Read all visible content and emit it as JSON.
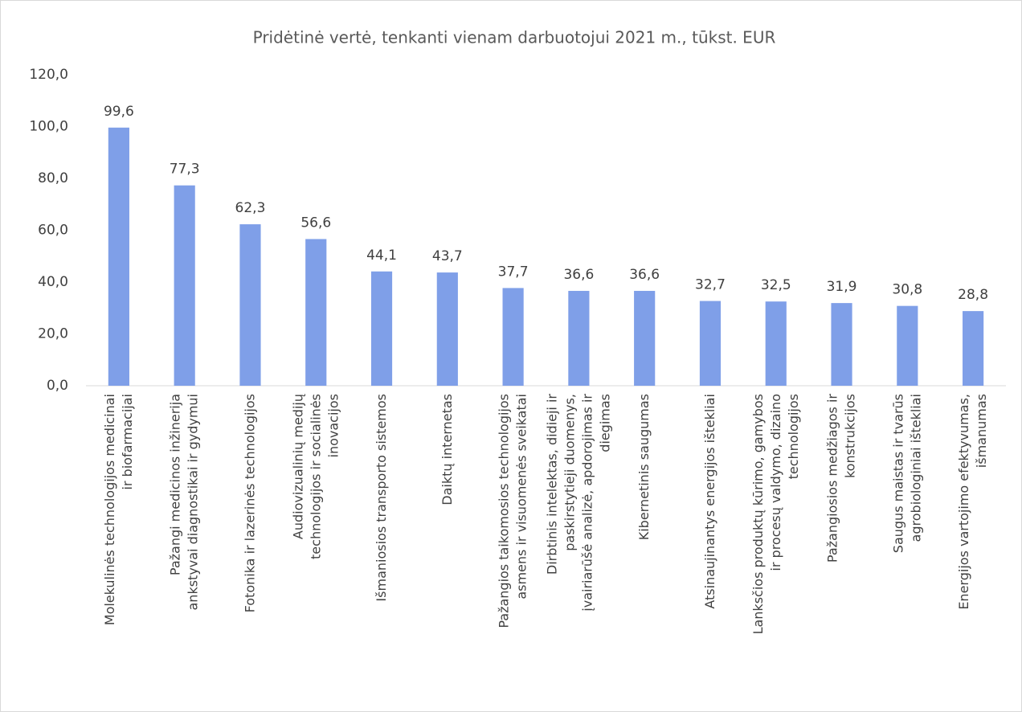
{
  "chart_data": {
    "type": "bar",
    "title": "Pridėtinė vertė, tenkanti vienam darbuotojui 2021 m., tūkst. EUR",
    "categories": [
      "Molekulinės technologijos medicinai ir biofarmacijai",
      "Pažangi medicinos inžinerija ankstyvai diagnostikai ir gydymui",
      "Fotonika ir lazerinės technologijos",
      "Audiovizualinių medijų technologijos ir socialinės inovacijos",
      "Išmaniosios transporto sistemos",
      "Daiktų internetas",
      "Pažangios taikomosios technologijos asmens ir visuomenės sveikatai",
      "Dirbtinis intelektas, didieji ir paskirstytieji duomenys, įvairiarūšė analizė, apdorojimas ir diegimas",
      "Kibernetinis saugumas",
      "Atsinaujinantys energijos ištekliai",
      "Lanksčios produktų kūrimo, gamybos ir procesų valdymo, dizaino technologijos",
      "Pažangiosios medžiagos ir konstrukcijos",
      "Saugus maistas ir tvarūs agrobiologiniai ištekliai",
      "Energijos vartojimo efektyvumas, išmanumas"
    ],
    "values": [
      99.6,
      77.3,
      62.3,
      56.6,
      44.1,
      43.7,
      37.7,
      36.6,
      36.6,
      32.7,
      32.5,
      31.9,
      30.8,
      28.8
    ],
    "value_labels": [
      "99,6",
      "77,3",
      "62,3",
      "56,6",
      "44,1",
      "43,7",
      "37,7",
      "36,6",
      "36,6",
      "32,7",
      "32,5",
      "31,9",
      "30,8",
      "28,8"
    ],
    "color": "#7f9fe8",
    "ylim": [
      0,
      120
    ],
    "yticks": [
      {
        "value": 0,
        "label": "0,0"
      },
      {
        "value": 20,
        "label": "20,0"
      },
      {
        "value": 40,
        "label": "40,0"
      },
      {
        "value": 60,
        "label": "60,0"
      },
      {
        "value": 80,
        "label": "80,0"
      },
      {
        "value": 100,
        "label": "100,0"
      },
      {
        "value": 120,
        "label": "120,0"
      }
    ],
    "grid": false
  }
}
